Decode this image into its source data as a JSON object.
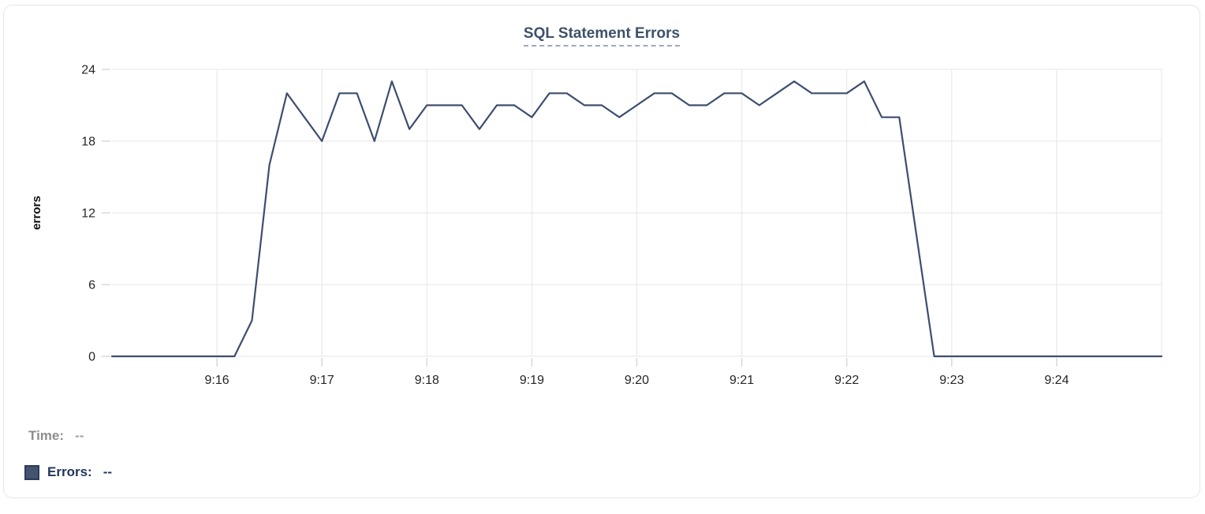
{
  "card": {
    "title": "SQL Statement Errors"
  },
  "readout": {
    "time_label": "Time:",
    "time_value": "--",
    "errors_label": "Errors:",
    "errors_value": "--"
  },
  "colors": {
    "line": "#3d4e6e",
    "title": "#3e5169",
    "title_underline": "#9ba8c4",
    "grid": "#ebebeb",
    "tick": "#d9d9d9",
    "axis_text": "#262626",
    "axis_label_text": "#111111",
    "legend_time_text": "#8d8d8d",
    "legend_errors_text": "#21365c",
    "swatch_fill": "#44536f",
    "swatch_border": "#2b3c58",
    "card_border": "#e6e6e6"
  },
  "chart_data": {
    "type": "line",
    "title": "SQL Statement Errors",
    "xlabel": "",
    "ylabel": "errors",
    "x_start": "9:15:00",
    "x_end": "9:25:00",
    "x_interval_seconds": 10,
    "x_tick_labels": [
      "9:16",
      "9:17",
      "9:18",
      "9:19",
      "9:20",
      "9:21",
      "9:22",
      "9:23",
      "9:24"
    ],
    "y_ticks": [
      0,
      6,
      12,
      18,
      24
    ],
    "ylim": [
      0,
      24
    ],
    "grid": true,
    "legend_position": "bottom",
    "series": [
      {
        "name": "Errors",
        "values": [
          0,
          0,
          0,
          0,
          0,
          0,
          0,
          0,
          3,
          16,
          22,
          20,
          18,
          22,
          22,
          18,
          23,
          19,
          21,
          21,
          21,
          19,
          21,
          21,
          20,
          22,
          22,
          21,
          21,
          20,
          21,
          22,
          22,
          21,
          21,
          22,
          22,
          21,
          22,
          23,
          22,
          22,
          22,
          23,
          20,
          20,
          10,
          0,
          0,
          0,
          0,
          0,
          0,
          0,
          0,
          0,
          0,
          0,
          0,
          0,
          0
        ]
      }
    ]
  }
}
